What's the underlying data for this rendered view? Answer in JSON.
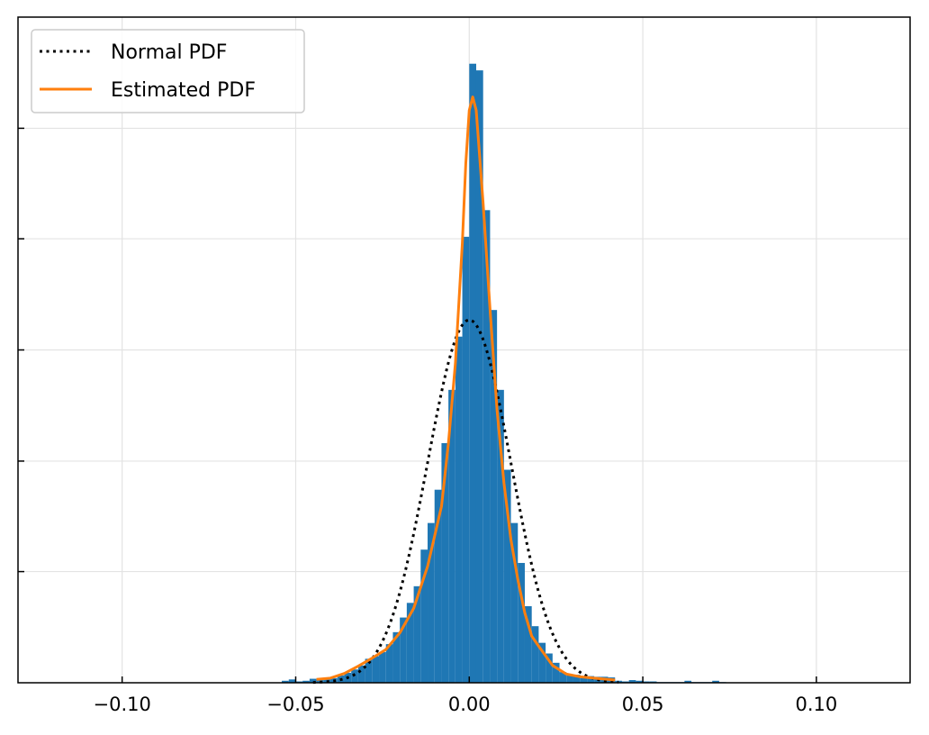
{
  "chart_data": {
    "type": "bar",
    "subtype": "histogram-with-density-curves",
    "title": "",
    "xlabel": "",
    "ylabel": "",
    "xlim": [
      -0.13,
      0.127
    ],
    "ylim": [
      0,
      1.0
    ],
    "y_ticks_labeled": false,
    "grid": true,
    "legend_position": "upper-left",
    "x_ticks": [
      -0.1,
      -0.05,
      0.0,
      0.05,
      0.1
    ],
    "x_tick_labels": [
      "−0.10",
      "−0.05",
      "0.00",
      "0.05",
      "0.10"
    ],
    "y_ticks": [
      0.167,
      0.333,
      0.5,
      0.667,
      0.833
    ],
    "histogram": {
      "color": "#1f77b4",
      "bin_width": 0.002,
      "bin_left_edges": [
        -0.054,
        -0.052,
        -0.05,
        -0.048,
        -0.046,
        -0.044,
        -0.042,
        -0.04,
        -0.038,
        -0.036,
        -0.034,
        -0.032,
        -0.03,
        -0.028,
        -0.026,
        -0.024,
        -0.022,
        -0.02,
        -0.018,
        -0.016,
        -0.014,
        -0.012,
        -0.01,
        -0.008,
        -0.006,
        -0.004,
        -0.002,
        0.0,
        0.002,
        0.004,
        0.006,
        0.008,
        0.01,
        0.012,
        0.014,
        0.016,
        0.018,
        0.02,
        0.022,
        0.024,
        0.026,
        0.028,
        0.03,
        0.032,
        0.034,
        0.036,
        0.038,
        0.04,
        0.042,
        0.044,
        0.046,
        0.048,
        0.05,
        0.052,
        0.054,
        0.056,
        0.058,
        0.06,
        0.062,
        0.064,
        0.066,
        0.068,
        0.07,
        0.072
      ],
      "heights": [
        0.003,
        0.005,
        0.002,
        0.003,
        0.006,
        0.004,
        0.005,
        0.007,
        0.011,
        0.015,
        0.02,
        0.026,
        0.036,
        0.04,
        0.046,
        0.058,
        0.076,
        0.098,
        0.12,
        0.145,
        0.2,
        0.24,
        0.29,
        0.36,
        0.44,
        0.52,
        0.67,
        0.93,
        0.92,
        0.71,
        0.56,
        0.44,
        0.32,
        0.24,
        0.18,
        0.115,
        0.085,
        0.06,
        0.044,
        0.03,
        0.016,
        0.013,
        0.012,
        0.01,
        0.01,
        0.009,
        0.009,
        0.008,
        0.003,
        0.002,
        0.004,
        0.003,
        0.002,
        0.002,
        0.001,
        0.001,
        0.001,
        0.001,
        0.003,
        0.001,
        0.001,
        0.001,
        0.003,
        0.001
      ]
    },
    "series": [
      {
        "name": "Normal PDF",
        "style": "dotted",
        "color": "#000000",
        "mean": 0.0,
        "std": 0.012,
        "peak": 0.545,
        "x_range": [
          -0.045,
          0.043
        ]
      },
      {
        "name": "Estimated PDF",
        "style": "solid",
        "color": "#ff7f0e",
        "x": [
          -0.044,
          -0.04,
          -0.036,
          -0.032,
          -0.028,
          -0.024,
          -0.02,
          -0.016,
          -0.012,
          -0.008,
          -0.006,
          -0.004,
          -0.002,
          -0.001,
          0.0,
          0.001,
          0.002,
          0.004,
          0.006,
          0.008,
          0.01,
          0.012,
          0.014,
          0.016,
          0.018,
          0.02,
          0.024,
          0.028,
          0.032,
          0.036,
          0.04,
          0.042
        ],
        "y": [
          0.005,
          0.007,
          0.014,
          0.025,
          0.037,
          0.05,
          0.075,
          0.112,
          0.175,
          0.265,
          0.36,
          0.48,
          0.66,
          0.78,
          0.86,
          0.88,
          0.86,
          0.72,
          0.56,
          0.41,
          0.3,
          0.215,
          0.155,
          0.105,
          0.07,
          0.055,
          0.026,
          0.013,
          0.009,
          0.007,
          0.005,
          0.004
        ]
      }
    ]
  }
}
